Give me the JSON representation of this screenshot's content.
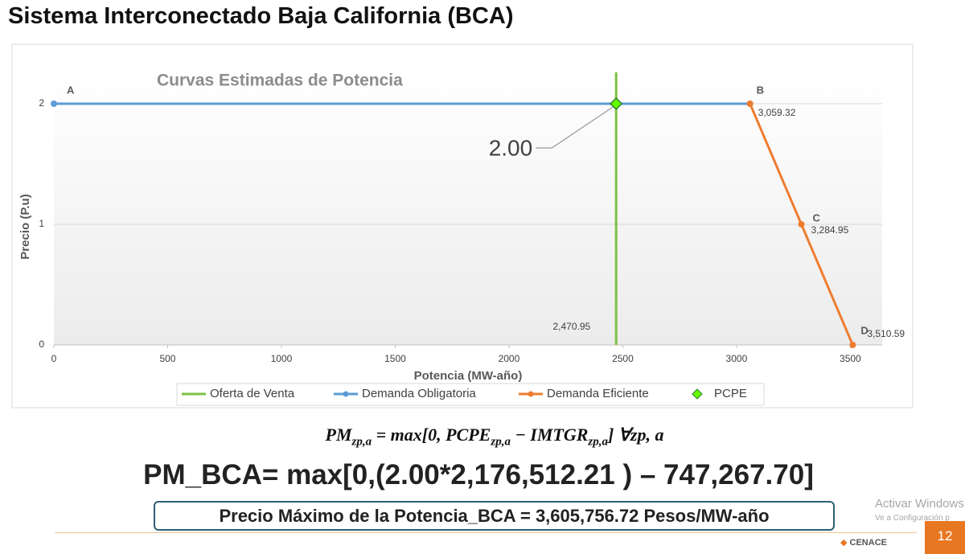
{
  "slide_title": "Sistema Interconectado Baja California (BCA)",
  "chart_data": {
    "type": "line",
    "title": "Curvas Estimadas de Potencia",
    "x_label": "Potencia  (MW-año)",
    "y_label": "Precio  (P.u)",
    "xlim": [
      0,
      3640
    ],
    "ylim": [
      0,
      2.26
    ],
    "xticks": [
      0,
      500,
      1000,
      1500,
      2000,
      2500,
      3000,
      3500
    ],
    "yticks": [
      0,
      1,
      2
    ],
    "grid": true,
    "series": [
      {
        "name": "Oferta de Venta",
        "color": "#7dc242",
        "marker": "none",
        "x": [
          2470.95,
          2470.95
        ],
        "values": [
          0,
          2.26
        ],
        "x_labels": [
          "2,470.95",
          null
        ]
      },
      {
        "name": "Demanda Obligatoria",
        "color": "#5b9bd5",
        "marker": "circle",
        "x": [
          0,
          3059.32
        ],
        "values": [
          2,
          2
        ],
        "point_labels": [
          "A",
          null
        ]
      },
      {
        "name": "Demanda Eficiente",
        "color": "#ed7d31",
        "marker": "circle",
        "x": [
          3059.32,
          3284.95,
          3510.59
        ],
        "values": [
          2,
          1,
          0
        ],
        "point_labels": [
          "B",
          "C",
          "D"
        ],
        "x_labels": [
          "3,059.32",
          "3,284.95",
          "3,510.59"
        ]
      },
      {
        "name": "PCPE",
        "color": "#66ff00",
        "marker": "diamond",
        "x": [
          2470.95
        ],
        "values": [
          2
        ],
        "value_labels": [
          "2.00"
        ]
      }
    ]
  },
  "formula": [
    {
      "text": "PM",
      "sub": "zp,a"
    },
    {
      "text": " = max[0,  "
    },
    {
      "text": "PCPE",
      "sub": "zp,a"
    },
    {
      "text": " − "
    },
    {
      "text": "IMTGR",
      "sub": "zp,a"
    },
    {
      "text": "]    ∀zp, a"
    }
  ],
  "calculation": "PM_BCA= max[0,(2.00*2,176,512.21 ) – 747,267.70]",
  "result": "Precio Máximo de la Potencia_BCA = 3,605,756.72 Pesos/MW-año",
  "watermark": [
    "Activar Windows",
    "Ve a Configuración p"
  ],
  "logo": "CENACE",
  "page_number": "12"
}
